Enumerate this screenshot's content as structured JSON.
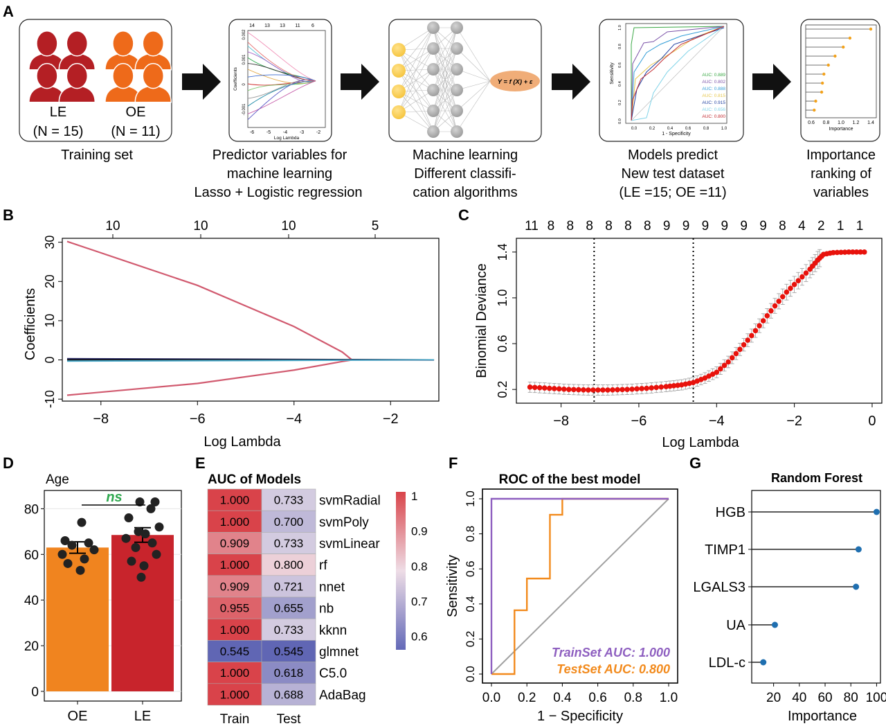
{
  "panelA": {
    "letter": "A",
    "training": {
      "le_label": "LE",
      "oe_label": "OE",
      "le_n": "(N = 15)",
      "oe_n": "(N = 11)",
      "caption": "Training set"
    },
    "step2": {
      "caption1": "Predictor variables for",
      "caption2": "machine learning",
      "caption3": "Lasso + Logistic regression",
      "xlabel": "Log Lambda",
      "ylabel": "Coefficients",
      "top_ticks": [
        "14",
        "13",
        "13",
        "11",
        "6"
      ],
      "x_ticks": [
        "-6",
        "-5",
        "-4",
        "-3",
        "-2"
      ],
      "y_ticks": [
        "0.002",
        "0.001",
        "0",
        "-0.001"
      ]
    },
    "step3": {
      "caption1": "Machine learning",
      "caption2": "Different classifi-",
      "caption3": "cation algorithms",
      "formula": "Y = f (X) + ε"
    },
    "step4": {
      "caption1": "Models predict",
      "caption2": "New test dataset",
      "caption3": "(LE =15; OE =11)",
      "xlabel": "1 - Specificity",
      "ylabel": "Sensitivity",
      "aucs": [
        "AUC: 0.889",
        "AUC: 0.802",
        "AUC: 0.888",
        "AUC: 0.815",
        "AUC: 0.915",
        "AUC: 0.656",
        "AUC: 0.800"
      ],
      "auc_colors": [
        "#3aa845",
        "#7b52a8",
        "#2f9bd6",
        "#e6c64a",
        "#1f3fa0",
        "#7fd3e8",
        "#c2272d"
      ],
      "x_ticks": [
        "0.0",
        "0.2",
        "0.4",
        "0.6",
        "0.8",
        "1.0"
      ],
      "y_ticks": [
        "1.0",
        "0.8",
        "0.6",
        "0.4",
        "0.2",
        "0.0"
      ]
    },
    "step5": {
      "caption1": "Importance",
      "caption2": "ranking of",
      "caption3": "variables",
      "xlabel": "Importance",
      "x_ticks": [
        "0.6",
        "0.8",
        "1.0",
        "1.2",
        "1.4"
      ],
      "values": [
        1.4,
        1.12,
        1.03,
        0.92,
        0.83,
        0.77,
        0.75,
        0.74,
        0.66,
        0.64
      ]
    }
  },
  "panelB": {
    "letter": "B",
    "xlabel": "Log Lambda",
    "ylabel": "Coefficients",
    "top_ticks": [
      "10",
      "10",
      "10",
      "5"
    ],
    "x_ticks": [
      "-8",
      "-6",
      "-4",
      "-2"
    ],
    "y_ticks": [
      "30",
      "20",
      "10",
      "0",
      "-10"
    ]
  },
  "panelC": {
    "letter": "C",
    "xlabel": "Log Lambda",
    "ylabel": "Binomial Deviance",
    "top_ticks": [
      "11",
      "8",
      "8",
      "8",
      "8",
      "8",
      "8",
      "9",
      "9",
      "9",
      "9",
      "9",
      "9",
      "8",
      "4",
      "2",
      "1",
      "1"
    ],
    "x_ticks": [
      "-8",
      "-6",
      "-4",
      "-2",
      "0"
    ],
    "y_ticks": [
      "0.2",
      "0.6",
      "1.0",
      "1.4"
    ]
  },
  "panelD": {
    "letter": "D",
    "title": "Age",
    "ns": "ns",
    "y_ticks": [
      "80",
      "60",
      "40",
      "20",
      "0"
    ],
    "categories": [
      "OE",
      "LE"
    ]
  },
  "panelE": {
    "letter": "E",
    "title": "AUC of Models",
    "col_labels": [
      "Train",
      "Test"
    ],
    "legend_ticks": [
      "1",
      "0.9",
      "0.8",
      "0.7",
      "0.6"
    ]
  },
  "panelF": {
    "letter": "F",
    "title": "ROC of the best model",
    "xlabel": "1 − Specificity",
    "ylabel": "Sensitivity",
    "x_ticks": [
      "0.0",
      "0.2",
      "0.4",
      "0.6",
      "0.8",
      "1.0"
    ],
    "y_ticks": [
      "1.0",
      "0.8",
      "0.6",
      "0.4",
      "0.2",
      "0.0"
    ],
    "train_label": "TrainSet AUC: 1.000",
    "test_label": "TestSet AUC: 0.800",
    "train_color": "#8e5fc0",
    "test_color": "#f28a1c"
  },
  "panelG": {
    "letter": "G",
    "title": "Random Forest",
    "xlabel": "Importance",
    "x_ticks": [
      "20",
      "40",
      "60",
      "80",
      "100"
    ]
  },
  "chart_data": [
    {
      "type": "line",
      "panel": "B",
      "xlabel": "Log Lambda",
      "ylabel": "Coefficients",
      "xlim": [
        -8.7,
        -1.1
      ],
      "ylim": [
        -10,
        31
      ],
      "series": [
        {
          "x": [
            -8.7,
            -6.0,
            -4.0,
            -3.0,
            -2.8,
            -1.1
          ],
          "y": [
            30.2,
            19.0,
            8.5,
            2.0,
            0.0,
            0.0
          ]
        },
        {
          "x": [
            -8.7,
            -6.0,
            -4.0,
            -3.0,
            -2.8,
            -1.1
          ],
          "y": [
            -9.0,
            -6.0,
            -2.6,
            -0.4,
            0.0,
            0.0
          ]
        },
        {
          "x": [
            -8.7,
            -1.1
          ],
          "y": [
            0.3,
            0.0
          ]
        },
        {
          "x": [
            -8.7,
            -1.1
          ],
          "y": [
            0.0,
            0.0
          ]
        },
        {
          "x": [
            -8.7,
            -1.1
          ],
          "y": [
            -0.3,
            0.0
          ]
        }
      ]
    },
    {
      "type": "scatter",
      "panel": "C",
      "xlabel": "Log Lambda",
      "ylabel": "Binomial Deviance",
      "xlim": [
        -8.8,
        -0.2
      ],
      "ylim": [
        0.1,
        1.45
      ],
      "vlines": [
        -7.15,
        -4.6
      ],
      "points": [
        [
          -8.8,
          0.22
        ],
        [
          -8.3,
          0.21
        ],
        [
          -7.8,
          0.2
        ],
        [
          -7.3,
          0.195
        ],
        [
          -6.8,
          0.195
        ],
        [
          -6.3,
          0.2
        ],
        [
          -5.8,
          0.21
        ],
        [
          -5.3,
          0.225
        ],
        [
          -4.9,
          0.24
        ],
        [
          -4.6,
          0.26
        ],
        [
          -4.3,
          0.3
        ],
        [
          -4.0,
          0.35
        ],
        [
          -3.7,
          0.44
        ],
        [
          -3.4,
          0.55
        ],
        [
          -3.1,
          0.67
        ],
        [
          -2.8,
          0.8
        ],
        [
          -2.5,
          0.93
        ],
        [
          -2.2,
          1.05
        ],
        [
          -1.9,
          1.15
        ],
        [
          -1.6,
          1.25
        ],
        [
          -1.4,
          1.33
        ],
        [
          -1.25,
          1.38
        ],
        [
          -1.0,
          1.395
        ],
        [
          -0.6,
          1.4
        ],
        [
          -0.2,
          1.4
        ]
      ]
    },
    {
      "type": "bar",
      "panel": "D",
      "title": "Age",
      "categories": [
        "OE",
        "LE"
      ],
      "values": [
        63,
        68.5
      ],
      "errors": [
        2.5,
        3.2
      ],
      "ylim": [
        0,
        88
      ],
      "points": {
        "OE": [
          74,
          66,
          65,
          64,
          62,
          60,
          58,
          56,
          53
        ],
        "LE": [
          83,
          83,
          80,
          76,
          72,
          70,
          69,
          67,
          65,
          63,
          60,
          57,
          55,
          50
        ]
      }
    },
    {
      "type": "heatmap",
      "panel": "E",
      "title": "AUC of Models",
      "columns": [
        "Train",
        "Test"
      ],
      "rows": [
        "svmRadial",
        "svmPoly",
        "svmLinear",
        "rf",
        "nnet",
        "nb",
        "kknn",
        "glmnet",
        "C5.0",
        "AdaBag"
      ],
      "values": [
        [
          1.0,
          0.733
        ],
        [
          1.0,
          0.7
        ],
        [
          0.909,
          0.733
        ],
        [
          1.0,
          0.8
        ],
        [
          0.909,
          0.721
        ],
        [
          0.955,
          0.655
        ],
        [
          1.0,
          0.733
        ],
        [
          0.545,
          0.545
        ],
        [
          1.0,
          0.618
        ],
        [
          1.0,
          0.688
        ]
      ]
    },
    {
      "type": "line",
      "panel": "F",
      "title": "ROC of the best model",
      "xlabel": "1 − Specificity",
      "ylabel": "Sensitivity",
      "xlim": [
        0,
        1
      ],
      "ylim": [
        0,
        1
      ],
      "series": [
        {
          "name": "TrainSet AUC: 1.000",
          "x": [
            0,
            0,
            1
          ],
          "y": [
            0,
            1,
            1
          ]
        },
        {
          "name": "TestSet AUC: 0.800",
          "x": [
            0,
            0.13,
            0.13,
            0.2,
            0.2,
            0.33,
            0.33,
            0.4,
            0.4,
            1.0
          ],
          "y": [
            0,
            0,
            0.364,
            0.364,
            0.545,
            0.545,
            0.909,
            0.909,
            1.0,
            1.0
          ]
        }
      ]
    },
    {
      "type": "scatter",
      "panel": "G",
      "title": "Random Forest",
      "xlabel": "Importance",
      "xlim": [
        5,
        102
      ],
      "categories": [
        "HGB",
        "TIMP1",
        "LGALS3",
        "UA",
        "LDL-c"
      ],
      "values": [
        100,
        86,
        84,
        21,
        12
      ]
    }
  ]
}
